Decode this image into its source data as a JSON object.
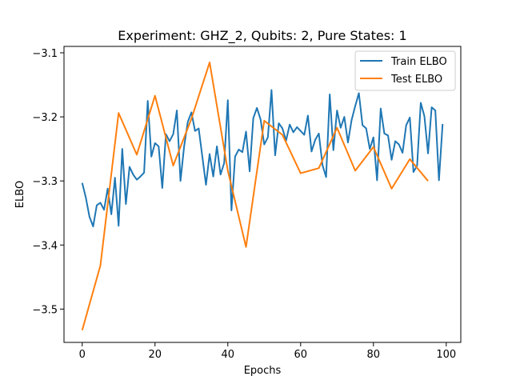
{
  "chart_data": {
    "type": "line",
    "title": "Experiment: GHZ_2, Qubits: 2, Pure States: 1",
    "xlabel": "Epochs",
    "ylabel": "ELBO",
    "xlim": [
      -5,
      104
    ],
    "ylim": [
      -3.552,
      -3.09
    ],
    "xticks": [
      0,
      20,
      40,
      60,
      80,
      100
    ],
    "yticks": [
      -3.5,
      -3.4,
      -3.3,
      -3.2,
      -3.1
    ],
    "ytick_labels": [
      "−3.5",
      "−3.4",
      "−3.3",
      "−3.2",
      "−3.1"
    ],
    "grid": false,
    "legend_position": "upper right",
    "series": [
      {
        "name": "Train ELBO",
        "color": "#1f77b4",
        "x": [
          0,
          1,
          2,
          3,
          4,
          5,
          6,
          7,
          8,
          9,
          10,
          11,
          12,
          13,
          14,
          15,
          16,
          17,
          18,
          19,
          20,
          21,
          22,
          23,
          24,
          25,
          26,
          27,
          28,
          29,
          30,
          31,
          32,
          33,
          34,
          35,
          36,
          37,
          38,
          39,
          40,
          41,
          42,
          43,
          44,
          45,
          46,
          47,
          48,
          49,
          50,
          51,
          52,
          53,
          54,
          55,
          56,
          57,
          58,
          59,
          60,
          61,
          62,
          63,
          64,
          65,
          66,
          67,
          68,
          69,
          70,
          71,
          72,
          73,
          74,
          75,
          76,
          77,
          78,
          79,
          80,
          81,
          82,
          83,
          84,
          85,
          86,
          87,
          88,
          89,
          90,
          91,
          92,
          93,
          94,
          95,
          96,
          97,
          98,
          99
        ],
        "y": [
          -3.303,
          -3.326,
          -3.356,
          -3.371,
          -3.338,
          -3.334,
          -3.345,
          -3.312,
          -3.352,
          -3.295,
          -3.37,
          -3.25,
          -3.336,
          -3.278,
          -3.29,
          -3.298,
          -3.293,
          -3.287,
          -3.175,
          -3.262,
          -3.241,
          -3.246,
          -3.311,
          -3.227,
          -3.238,
          -3.227,
          -3.19,
          -3.3,
          -3.246,
          -3.208,
          -3.193,
          -3.222,
          -3.218,
          -3.262,
          -3.306,
          -3.258,
          -3.293,
          -3.246,
          -3.29,
          -3.272,
          -3.174,
          -3.346,
          -3.262,
          -3.251,
          -3.255,
          -3.223,
          -3.285,
          -3.202,
          -3.186,
          -3.204,
          -3.243,
          -3.232,
          -3.158,
          -3.26,
          -3.21,
          -3.218,
          -3.237,
          -3.212,
          -3.224,
          -3.216,
          -3.222,
          -3.228,
          -3.198,
          -3.254,
          -3.236,
          -3.226,
          -3.275,
          -3.294,
          -3.165,
          -3.252,
          -3.19,
          -3.217,
          -3.2,
          -3.24,
          -3.205,
          -3.183,
          -3.163,
          -3.213,
          -3.218,
          -3.25,
          -3.232,
          -3.299,
          -3.187,
          -3.226,
          -3.229,
          -3.267,
          -3.238,
          -3.243,
          -3.256,
          -3.213,
          -3.201,
          -3.286,
          -3.276,
          -3.178,
          -3.199,
          -3.257,
          -3.185,
          -3.19,
          -3.299,
          -3.211
        ]
      },
      {
        "name": "Test ELBO",
        "color": "#ff7f0e",
        "x": [
          0,
          5,
          10,
          15,
          20,
          25,
          30,
          35,
          40,
          45,
          50,
          55,
          60,
          65,
          70,
          75,
          80,
          85,
          90,
          95
        ],
        "y": [
          -3.533,
          -3.432,
          -3.194,
          -3.259,
          -3.167,
          -3.276,
          -3.203,
          -3.115,
          -3.284,
          -3.403,
          -3.206,
          -3.228,
          -3.288,
          -3.28,
          -3.217,
          -3.284,
          -3.247,
          -3.312,
          -3.266,
          -3.3
        ]
      }
    ]
  }
}
